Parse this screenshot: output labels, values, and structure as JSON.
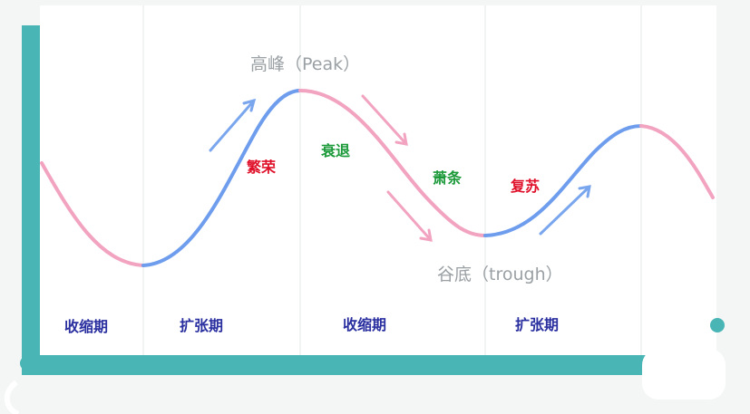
{
  "labels": {
    "peak": "高峰（Peak）",
    "trough": "谷底（trough）"
  },
  "phases": {
    "prosperity": "繁荣",
    "recession": "衰退",
    "depression": "萧条",
    "recovery": "复苏"
  },
  "periods": [
    "收缩期",
    "扩张期",
    "收缩期",
    "扩张期"
  ],
  "colors": {
    "background": "#f4f6f6",
    "plot_area": "#ffffff",
    "axis": "#49b5b5",
    "expansion_curve": "#6f9ded",
    "contraction_curve": "#f2a3c0",
    "rising_arrow": "#7aa6ee",
    "falling_arrow": "#f2a3c0",
    "phase_warm": "#e0112a",
    "phase_cool": "#1c9a3a",
    "period_text": "#2a2fa0",
    "peak_trough_text": "#9aa0a4"
  }
}
